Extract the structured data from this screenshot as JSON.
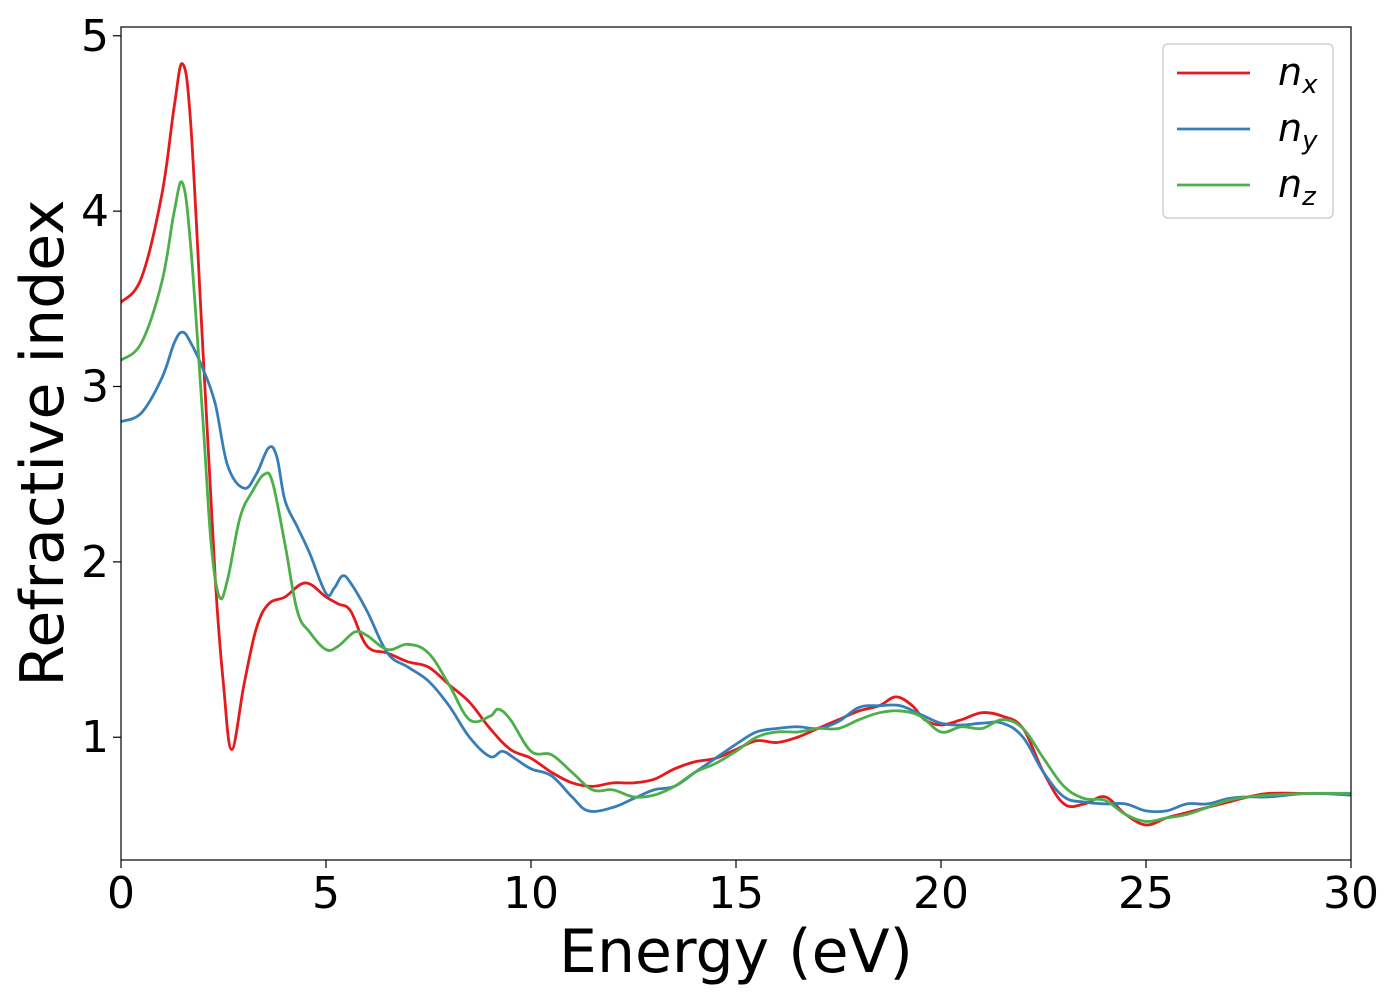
{
  "chart_data": {
    "type": "line",
    "xlabel": "Energy (eV)",
    "ylabel": "Refractive index",
    "xlim": [
      0,
      30
    ],
    "ylim": [
      0.3,
      5.05
    ],
    "xticks": [
      0,
      5,
      10,
      15,
      20,
      25,
      30
    ],
    "yticks": [
      1,
      2,
      3,
      4,
      5
    ],
    "grid": false,
    "legend_position": "top-right",
    "series": [
      {
        "name": "n",
        "subscript": "x",
        "color": "#e41a1c",
        "x": [
          0,
          0.5,
          1.0,
          1.3,
          1.5,
          1.7,
          2.0,
          2.3,
          2.5,
          2.7,
          3.0,
          3.3,
          3.6,
          4.0,
          4.5,
          5.0,
          5.3,
          5.6,
          6.0,
          6.5,
          7.0,
          7.5,
          8.0,
          8.5,
          9.0,
          9.5,
          10.0,
          10.5,
          11.0,
          11.5,
          12.0,
          12.5,
          13.0,
          13.5,
          14.0,
          14.5,
          15.0,
          15.5,
          16.0,
          16.5,
          17.0,
          17.5,
          18.0,
          18.5,
          18.9,
          19.3,
          19.6,
          20.0,
          20.5,
          21.0,
          21.5,
          22.0,
          22.5,
          23.0,
          23.5,
          24.0,
          24.5,
          25.0,
          25.5,
          26.0,
          26.5,
          27.0,
          27.5,
          28.0,
          29.0,
          30.0
        ],
        "y": [
          3.48,
          3.62,
          4.1,
          4.6,
          4.84,
          4.5,
          3.2,
          1.9,
          1.3,
          0.93,
          1.3,
          1.62,
          1.76,
          1.8,
          1.88,
          1.8,
          1.76,
          1.72,
          1.52,
          1.48,
          1.43,
          1.4,
          1.3,
          1.2,
          1.05,
          0.93,
          0.88,
          0.8,
          0.74,
          0.72,
          0.74,
          0.74,
          0.76,
          0.82,
          0.86,
          0.88,
          0.93,
          0.98,
          0.97,
          1.0,
          1.05,
          1.1,
          1.15,
          1.18,
          1.23,
          1.18,
          1.1,
          1.07,
          1.1,
          1.14,
          1.12,
          1.05,
          0.8,
          0.62,
          0.62,
          0.66,
          0.56,
          0.5,
          0.54,
          0.57,
          0.6,
          0.63,
          0.66,
          0.68,
          0.68,
          0.68
        ]
      },
      {
        "name": "n",
        "subscript": "y",
        "color": "#377eb8",
        "x": [
          0,
          0.5,
          1.0,
          1.3,
          1.5,
          1.7,
          2.0,
          2.3,
          2.6,
          3.0,
          3.3,
          3.6,
          3.8,
          4.0,
          4.3,
          4.6,
          5.0,
          5.2,
          5.4,
          5.6,
          6.0,
          6.5,
          7.0,
          7.5,
          8.0,
          8.5,
          9.0,
          9.3,
          9.6,
          10.0,
          10.5,
          11.0,
          11.4,
          12.0,
          12.5,
          13.0,
          13.5,
          14.0,
          14.5,
          15.0,
          15.5,
          16.0,
          16.5,
          17.0,
          17.5,
          18.0,
          18.5,
          19.0,
          19.5,
          20.0,
          20.5,
          21.0,
          21.5,
          22.0,
          22.5,
          23.0,
          23.5,
          24.0,
          24.5,
          25.0,
          25.5,
          26.0,
          26.5,
          27.0,
          27.5,
          28.0,
          29.0,
          30.0
        ],
        "y": [
          2.8,
          2.85,
          3.05,
          3.25,
          3.31,
          3.25,
          3.1,
          2.9,
          2.55,
          2.42,
          2.5,
          2.65,
          2.6,
          2.35,
          2.2,
          2.05,
          1.82,
          1.85,
          1.92,
          1.88,
          1.72,
          1.48,
          1.4,
          1.32,
          1.18,
          1.0,
          0.89,
          0.92,
          0.88,
          0.82,
          0.78,
          0.66,
          0.58,
          0.6,
          0.65,
          0.7,
          0.72,
          0.8,
          0.88,
          0.96,
          1.03,
          1.05,
          1.06,
          1.05,
          1.09,
          1.17,
          1.18,
          1.18,
          1.13,
          1.08,
          1.07,
          1.08,
          1.08,
          1.0,
          0.8,
          0.66,
          0.63,
          0.62,
          0.62,
          0.58,
          0.58,
          0.62,
          0.62,
          0.65,
          0.66,
          0.66,
          0.68,
          0.67
        ]
      },
      {
        "name": "n",
        "subscript": "z",
        "color": "#4daf4a",
        "x": [
          0,
          0.5,
          1.0,
          1.3,
          1.5,
          1.7,
          2.0,
          2.2,
          2.4,
          2.6,
          2.9,
          3.2,
          3.5,
          3.7,
          4.0,
          4.3,
          4.6,
          5.0,
          5.3,
          5.7,
          6.0,
          6.5,
          7.0,
          7.5,
          8.0,
          8.5,
          9.0,
          9.2,
          9.5,
          10.0,
          10.5,
          11.0,
          11.5,
          12.0,
          12.5,
          13.0,
          13.5,
          14.0,
          14.5,
          15.0,
          15.5,
          16.0,
          16.5,
          17.0,
          17.5,
          18.0,
          18.5,
          19.0,
          19.5,
          20.0,
          20.5,
          21.0,
          21.5,
          22.0,
          22.5,
          23.0,
          23.5,
          24.0,
          24.5,
          25.0,
          25.5,
          26.0,
          26.5,
          27.0,
          27.5,
          28.0,
          29.0,
          30.0
        ],
        "y": [
          3.15,
          3.25,
          3.6,
          4.0,
          4.16,
          3.8,
          2.8,
          2.1,
          1.8,
          1.9,
          2.25,
          2.4,
          2.5,
          2.45,
          2.1,
          1.72,
          1.6,
          1.5,
          1.52,
          1.6,
          1.58,
          1.5,
          1.53,
          1.48,
          1.3,
          1.1,
          1.12,
          1.16,
          1.1,
          0.92,
          0.9,
          0.8,
          0.7,
          0.7,
          0.66,
          0.67,
          0.72,
          0.8,
          0.85,
          0.92,
          1.0,
          1.03,
          1.03,
          1.05,
          1.05,
          1.1,
          1.14,
          1.15,
          1.12,
          1.03,
          1.06,
          1.05,
          1.1,
          1.05,
          0.88,
          0.72,
          0.65,
          0.64,
          0.56,
          0.52,
          0.54,
          0.56,
          0.6,
          0.64,
          0.66,
          0.67,
          0.68,
          0.68
        ]
      }
    ]
  }
}
